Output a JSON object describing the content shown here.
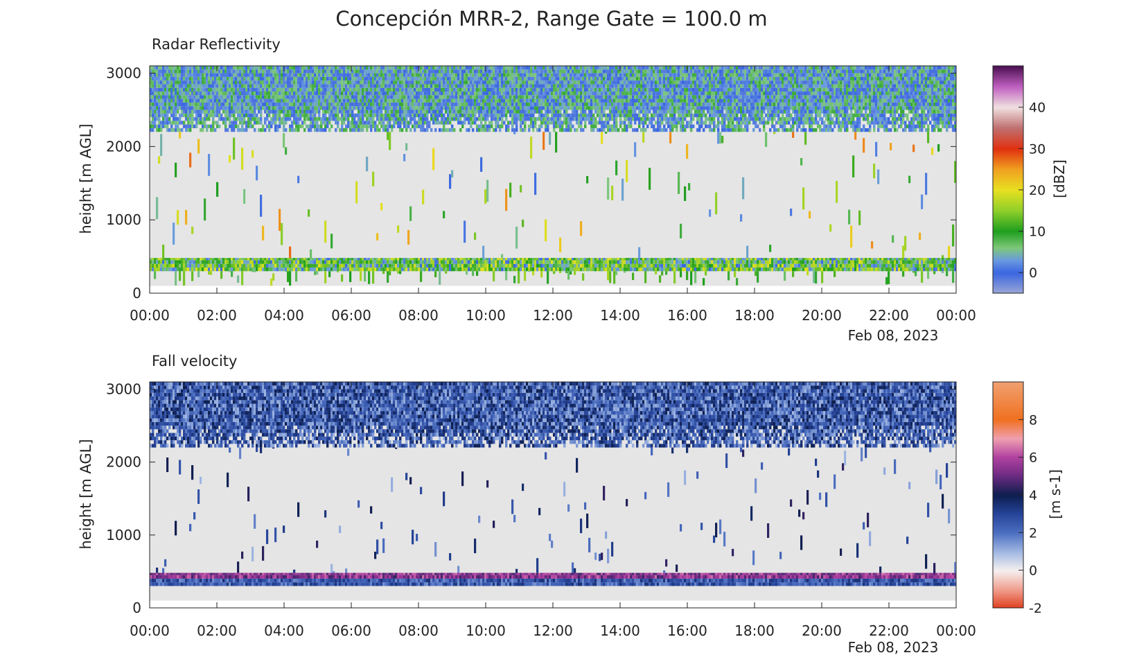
{
  "figure": {
    "title": "Concepción MRR-2, Range Gate = 100.0 m"
  },
  "chart_data": [
    {
      "type": "heatmap",
      "title": "Radar Reflectivity",
      "ylabel": "height [m AGL]",
      "xlabel": "",
      "date_label": "Feb 08, 2023",
      "x_ticks": [
        "00:00",
        "02:00",
        "04:00",
        "06:00",
        "08:00",
        "10:00",
        "12:00",
        "14:00",
        "16:00",
        "18:00",
        "20:00",
        "22:00",
        "00:00"
      ],
      "xlim": [
        "00:00",
        "24:00"
      ],
      "y_ticks": [
        0,
        1000,
        2000,
        3000
      ],
      "ylim": [
        0,
        3100
      ],
      "colorbar": {
        "label": "[dBZ]",
        "ticks": [
          0,
          10,
          20,
          30,
          40
        ],
        "range": [
          -5,
          50
        ],
        "stops": [
          {
            "value": -5,
            "color": "#9aa6d6"
          },
          {
            "value": 0,
            "color": "#3a66e0"
          },
          {
            "value": 3,
            "color": "#6a9ae0"
          },
          {
            "value": 6,
            "color": "#7ec87a"
          },
          {
            "value": 10,
            "color": "#1e9e1e"
          },
          {
            "value": 15,
            "color": "#8fcf2a"
          },
          {
            "value": 20,
            "color": "#e8e020"
          },
          {
            "value": 25,
            "color": "#f0a020"
          },
          {
            "value": 30,
            "color": "#e03010"
          },
          {
            "value": 35,
            "color": "#c07070"
          },
          {
            "value": 40,
            "color": "#f0e0e0"
          },
          {
            "value": 45,
            "color": "#c060c0"
          },
          {
            "value": 50,
            "color": "#4a1050"
          }
        ]
      },
      "background_color": "#e5e5e5",
      "layers": [
        {
          "name": "upper echo layer",
          "height_range": [
            2200,
            3100
          ],
          "value_range": [
            -2,
            9
          ],
          "coverage": "continuous"
        },
        {
          "name": "sparse echoes",
          "height_range": [
            300,
            2200
          ],
          "value_range": [
            0,
            28
          ],
          "coverage": "sparse"
        },
        {
          "name": "near-surface band",
          "height_range": [
            300,
            480
          ],
          "value_range": [
            0,
            20
          ],
          "coverage": "continuous"
        },
        {
          "name": "surface clutter",
          "height_range": [
            100,
            300
          ],
          "value_range": [
            5,
            18
          ],
          "coverage": "sparse"
        }
      ]
    },
    {
      "type": "heatmap",
      "title": "Fall velocity",
      "ylabel": "height [m AGL]",
      "xlabel": "",
      "date_label": "Feb 08, 2023",
      "x_ticks": [
        "00:00",
        "02:00",
        "04:00",
        "06:00",
        "08:00",
        "10:00",
        "12:00",
        "14:00",
        "16:00",
        "18:00",
        "20:00",
        "22:00",
        "00:00"
      ],
      "xlim": [
        "00:00",
        "24:00"
      ],
      "y_ticks": [
        0,
        1000,
        2000,
        3000
      ],
      "ylim": [
        0,
        3100
      ],
      "colorbar": {
        "label": "[m s-1]",
        "ticks": [
          -2,
          0,
          2,
          4,
          6,
          8
        ],
        "range": [
          -2,
          10
        ],
        "stops": [
          {
            "value": -2,
            "color": "#e04020"
          },
          {
            "value": -1,
            "color": "#f0a090"
          },
          {
            "value": 0,
            "color": "#f5f0f0"
          },
          {
            "value": 1,
            "color": "#9fb6e2"
          },
          {
            "value": 2,
            "color": "#4c6ec0"
          },
          {
            "value": 3,
            "color": "#26449a"
          },
          {
            "value": 4,
            "color": "#0d1e4e"
          },
          {
            "value": 5,
            "color": "#6a2a80"
          },
          {
            "value": 6,
            "color": "#b040a0"
          },
          {
            "value": 7,
            "color": "#f0a0b0"
          },
          {
            "value": 8,
            "color": "#f07020"
          },
          {
            "value": 10,
            "color": "#f0a070"
          }
        ]
      },
      "background_color": "#e5e5e5",
      "layers": [
        {
          "name": "upper layer",
          "height_range": [
            2200,
            3100
          ],
          "value_range": [
            1,
            4
          ],
          "coverage": "continuous"
        },
        {
          "name": "sparse echoes",
          "height_range": [
            300,
            2200
          ],
          "value_range": [
            1,
            4.5
          ],
          "coverage": "sparse"
        },
        {
          "name": "near-surface band",
          "height_range": [
            400,
            480
          ],
          "value_range": [
            4.5,
            6.5
          ],
          "coverage": "continuous"
        },
        {
          "name": "lower band",
          "height_range": [
            300,
            400
          ],
          "value_range": [
            1.5,
            3.5
          ],
          "coverage": "continuous"
        }
      ]
    }
  ]
}
